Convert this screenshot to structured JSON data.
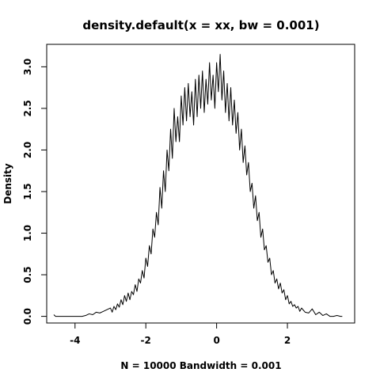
{
  "chart_data": {
    "type": "line",
    "title": "density.default(x = xx, bw = 0.001)",
    "xlabel": "N = 10000   Bandwidth = 0.001",
    "ylabel": "Density",
    "xlim": [
      -4.8,
      3.9
    ],
    "ylim": [
      -0.08,
      3.27
    ],
    "xticks": [
      -4,
      -2,
      0,
      2
    ],
    "yticks": [
      0.0,
      0.5,
      1.0,
      1.5,
      2.0,
      2.5,
      3.0
    ],
    "xtick_labels": [
      "-4",
      "-2",
      "0",
      "2"
    ],
    "ytick_labels": [
      "0.0",
      "0.5",
      "1.0",
      "1.5",
      "2.0",
      "2.5",
      "3.0"
    ],
    "grid": false,
    "legend": "none",
    "line_color": "#000000",
    "series": [
      {
        "x": [
          -4.6,
          -4.55,
          -4.4,
          -4.2,
          -4.0,
          -3.9,
          -3.8,
          -3.7,
          -3.6,
          -3.5,
          -3.4,
          -3.3,
          -3.2,
          -3.1,
          -3.0,
          -2.95,
          -2.9,
          -2.85,
          -2.8,
          -2.75,
          -2.7,
          -2.65,
          -2.6,
          -2.55,
          -2.5,
          -2.45,
          -2.4,
          -2.35,
          -2.3,
          -2.25,
          -2.2,
          -2.15,
          -2.1,
          -2.05,
          -2.0,
          -1.95,
          -1.9,
          -1.85,
          -1.8,
          -1.75,
          -1.7,
          -1.65,
          -1.6,
          -1.55,
          -1.5,
          -1.45,
          -1.4,
          -1.35,
          -1.3,
          -1.25,
          -1.2,
          -1.15,
          -1.1,
          -1.05,
          -1.0,
          -0.95,
          -0.9,
          -0.85,
          -0.8,
          -0.75,
          -0.7,
          -0.65,
          -0.6,
          -0.55,
          -0.5,
          -0.45,
          -0.4,
          -0.35,
          -0.3,
          -0.25,
          -0.2,
          -0.15,
          -0.1,
          -0.05,
          0.0,
          0.05,
          0.1,
          0.15,
          0.2,
          0.25,
          0.3,
          0.35,
          0.4,
          0.45,
          0.5,
          0.55,
          0.6,
          0.65,
          0.7,
          0.75,
          0.8,
          0.85,
          0.9,
          0.95,
          1.0,
          1.05,
          1.1,
          1.15,
          1.2,
          1.25,
          1.3,
          1.35,
          1.4,
          1.45,
          1.5,
          1.55,
          1.6,
          1.65,
          1.7,
          1.75,
          1.8,
          1.85,
          1.9,
          1.95,
          2.0,
          2.05,
          2.1,
          2.15,
          2.2,
          2.25,
          2.3,
          2.35,
          2.4,
          2.5,
          2.6,
          2.7,
          2.8,
          2.9,
          3.0,
          3.1,
          3.2,
          3.3,
          3.4,
          3.5,
          3.55
        ],
        "y": [
          0.02,
          0.0,
          0.0,
          0.0,
          0.0,
          0.0,
          0.0,
          0.01,
          0.03,
          0.02,
          0.05,
          0.04,
          0.06,
          0.08,
          0.1,
          0.05,
          0.12,
          0.08,
          0.15,
          0.11,
          0.2,
          0.14,
          0.25,
          0.18,
          0.28,
          0.2,
          0.3,
          0.26,
          0.38,
          0.3,
          0.45,
          0.4,
          0.55,
          0.46,
          0.7,
          0.6,
          0.85,
          0.75,
          1.05,
          0.95,
          1.25,
          1.1,
          1.55,
          1.3,
          1.75,
          1.5,
          2.0,
          1.75,
          2.25,
          1.9,
          2.5,
          2.1,
          2.4,
          2.1,
          2.65,
          2.3,
          2.75,
          2.35,
          2.8,
          2.4,
          2.7,
          2.3,
          2.85,
          2.4,
          2.9,
          2.5,
          2.95,
          2.45,
          2.85,
          2.55,
          3.05,
          2.6,
          2.9,
          2.5,
          3.05,
          2.7,
          3.15,
          2.6,
          2.95,
          2.45,
          2.8,
          2.35,
          2.75,
          2.3,
          2.6,
          2.2,
          2.45,
          2.0,
          2.25,
          1.85,
          2.05,
          1.7,
          1.85,
          1.5,
          1.6,
          1.3,
          1.45,
          1.15,
          1.25,
          0.95,
          1.05,
          0.8,
          0.85,
          0.65,
          0.7,
          0.5,
          0.55,
          0.4,
          0.45,
          0.33,
          0.4,
          0.28,
          0.32,
          0.2,
          0.25,
          0.15,
          0.18,
          0.12,
          0.14,
          0.1,
          0.12,
          0.06,
          0.1,
          0.05,
          0.04,
          0.09,
          0.02,
          0.05,
          0.01,
          0.03,
          0.0,
          0.0,
          0.01,
          0.0,
          0.0
        ]
      }
    ]
  }
}
